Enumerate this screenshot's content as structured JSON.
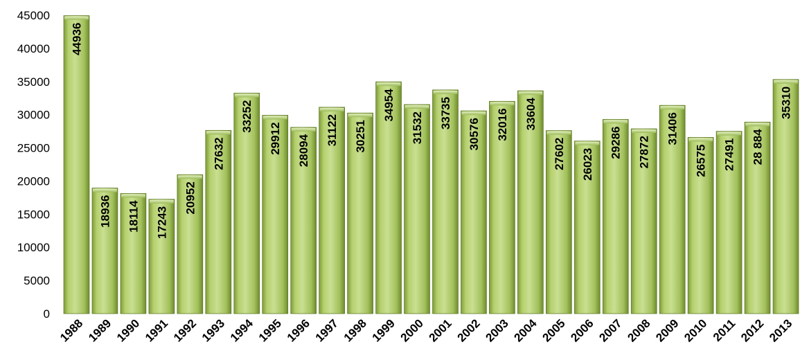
{
  "chart_data": {
    "type": "bar",
    "categories": [
      "1988",
      "1989",
      "1990",
      "1991",
      "1992",
      "1993",
      "1994",
      "1995",
      "1996",
      "1997",
      "1998",
      "1999",
      "2000",
      "2001",
      "2002",
      "2003",
      "2004",
      "2005",
      "2006",
      "2007",
      "2008",
      "2009",
      "2010",
      "2011",
      "2012",
      "2013"
    ],
    "values": [
      44936,
      18936,
      18114,
      17243,
      20952,
      27632,
      33252,
      29912,
      28094,
      31122,
      30251,
      34954,
      31532,
      33735,
      30576,
      32016,
      33604,
      27602,
      26023,
      29286,
      27872,
      31406,
      26575,
      27491,
      28884,
      35310
    ],
    "data_labels": [
      "44936",
      "18936",
      "18114",
      "17243",
      "20952",
      "27632",
      "33252",
      "29912",
      "28094",
      "31122",
      "30251",
      "34954",
      "31532",
      "33735",
      "30576",
      "32016",
      "33604",
      "27602",
      "26023",
      "29286",
      "27872",
      "31406",
      "26575",
      "27491",
      "28 884",
      "35310"
    ],
    "y_ticks": [
      "0",
      "5000",
      "10000",
      "15000",
      "20000",
      "25000",
      "30000",
      "35000",
      "40000",
      "45000"
    ],
    "ylim": [
      0,
      45000
    ],
    "title": "",
    "xlabel": "",
    "ylabel": "",
    "grid": false,
    "legend": "none",
    "bar_color": "#9bbb59",
    "bar_highlight": "#cde29a",
    "bar_edge": "#5f7a26"
  }
}
